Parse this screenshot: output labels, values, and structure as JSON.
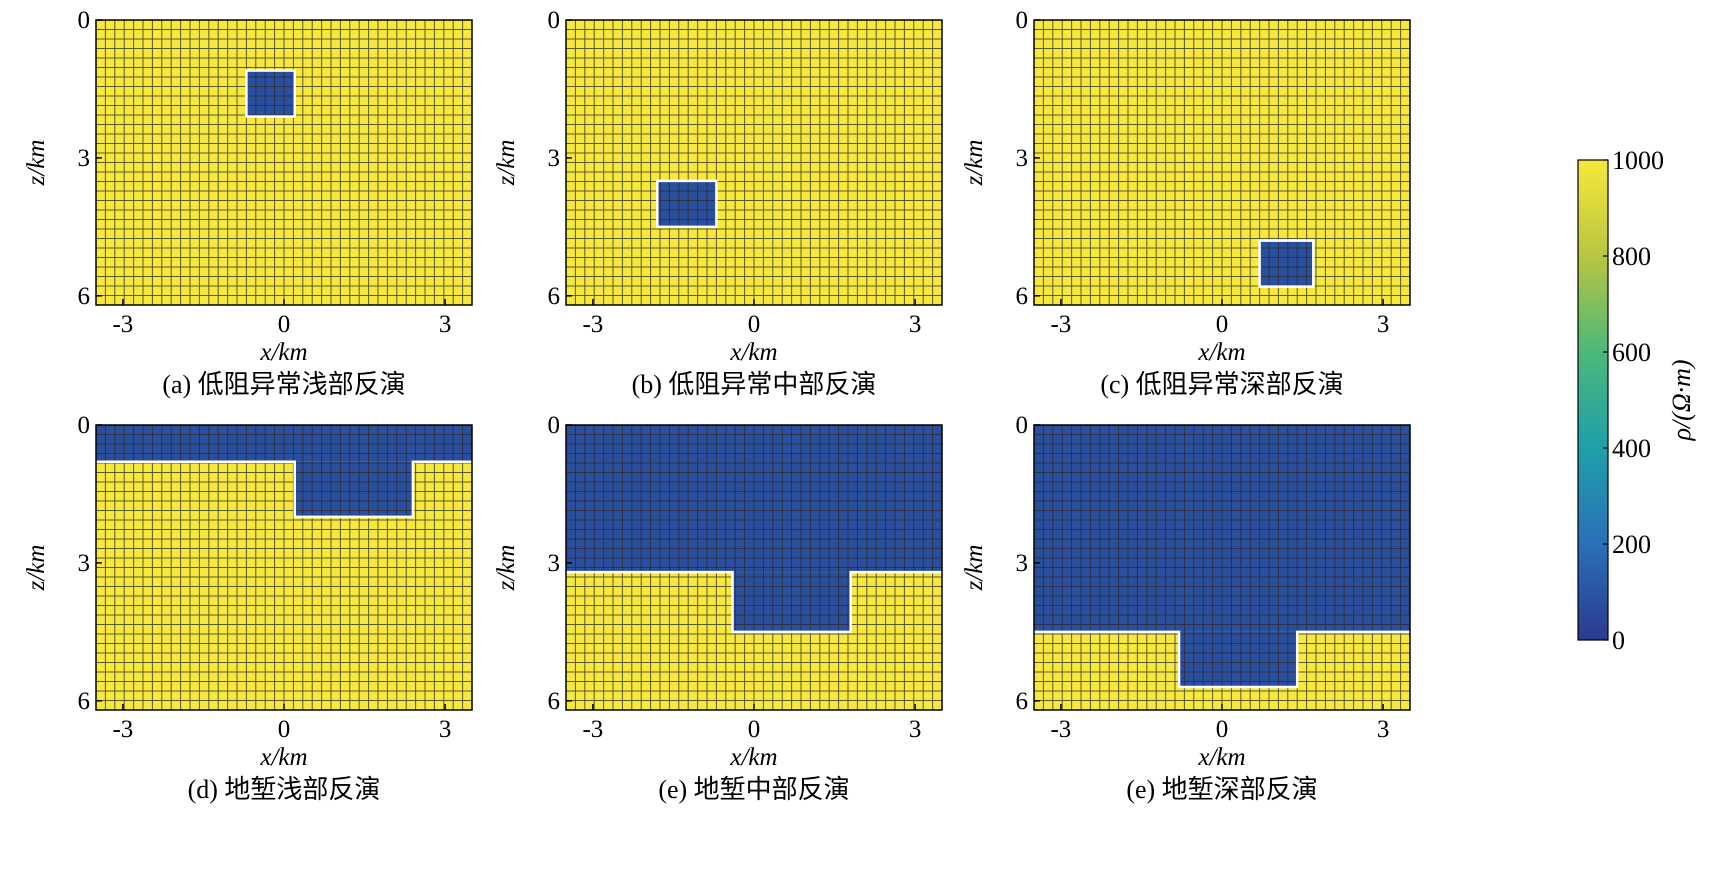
{
  "chart_data": {
    "type": "heatmap",
    "colorbar": {
      "label": "ρ/(Ω·m)",
      "range": [
        0,
        1000
      ],
      "ticks": [
        "1000",
        "800",
        "600",
        "400",
        "200",
        "0"
      ],
      "colors": [
        "#2b3a8f",
        "#2b6fb8",
        "#1fa0a8",
        "#4cb87a",
        "#b8c640",
        "#f6e83c"
      ]
    },
    "background_value": 1000,
    "anomaly_value": 80,
    "panels": [
      {
        "caption": "(a) 低阻异常浅部反演",
        "xlabel": "x/km",
        "ylabel": "z/km",
        "xlim": [
          -3.5,
          3.5
        ],
        "ylim": [
          6.2,
          0
        ],
        "xticks": [
          "-3",
          "0",
          "3"
        ],
        "yticks": [
          "0",
          "3",
          "6"
        ],
        "regions": [
          {
            "type": "rect",
            "x": [
              -0.7,
              0.2
            ],
            "z": [
              1.1,
              2.1
            ],
            "value": 80
          }
        ]
      },
      {
        "caption": "(b) 低阻异常中部反演",
        "xlabel": "x/km",
        "ylabel": "z/km",
        "xlim": [
          -3.5,
          3.5
        ],
        "ylim": [
          6.2,
          0
        ],
        "xticks": [
          "-3",
          "0",
          "3"
        ],
        "yticks": [
          "0",
          "3",
          "6"
        ],
        "regions": [
          {
            "type": "rect",
            "x": [
              -1.8,
              -0.7
            ],
            "z": [
              3.5,
              4.5
            ],
            "value": 80
          }
        ]
      },
      {
        "caption": "(c) 低阻异常深部反演",
        "xlabel": "x/km",
        "ylabel": "z/km",
        "xlim": [
          -3.5,
          3.5
        ],
        "ylim": [
          6.2,
          0
        ],
        "xticks": [
          "-3",
          "0",
          "3"
        ],
        "yticks": [
          "0",
          "3",
          "6"
        ],
        "regions": [
          {
            "type": "rect",
            "x": [
              0.7,
              1.7
            ],
            "z": [
              4.8,
              5.8
            ],
            "value": 80
          }
        ]
      },
      {
        "caption": "(d) 地堑浅部反演",
        "xlabel": "x/km",
        "ylabel": "z/km",
        "xlim": [
          -3.5,
          3.5
        ],
        "ylim": [
          6.2,
          0
        ],
        "xticks": [
          "-3",
          "0",
          "3"
        ],
        "yticks": [
          "0",
          "3",
          "6"
        ],
        "regions": [
          {
            "type": "layer",
            "z": [
              0,
              0.8
            ],
            "value": 80
          },
          {
            "type": "rect",
            "x": [
              0.2,
              2.4
            ],
            "z": [
              0.8,
              2.0
            ],
            "value": 80
          }
        ]
      },
      {
        "caption": "(e) 地堑中部反演",
        "xlabel": "x/km",
        "ylabel": "z/km",
        "xlim": [
          -3.5,
          3.5
        ],
        "ylim": [
          6.2,
          0
        ],
        "xticks": [
          "-3",
          "0",
          "3"
        ],
        "yticks": [
          "0",
          "3",
          "6"
        ],
        "regions": [
          {
            "type": "layer",
            "z": [
              0,
              3.2
            ],
            "value": 80
          },
          {
            "type": "rect",
            "x": [
              -0.4,
              1.8
            ],
            "z": [
              3.2,
              4.5
            ],
            "value": 80
          }
        ]
      },
      {
        "caption": "(e) 地堑深部反演",
        "xlabel": "x/km",
        "ylabel": "z/km",
        "xlim": [
          -3.5,
          3.5
        ],
        "ylim": [
          6.2,
          0
        ],
        "xticks": [
          "-3",
          "0",
          "3"
        ],
        "yticks": [
          "0",
          "3",
          "6"
        ],
        "regions": [
          {
            "type": "layer",
            "z": [
              0,
              4.5
            ],
            "value": 80
          },
          {
            "type": "rect",
            "x": [
              -0.8,
              1.4
            ],
            "z": [
              4.5,
              5.7
            ],
            "value": 80
          }
        ]
      }
    ]
  }
}
